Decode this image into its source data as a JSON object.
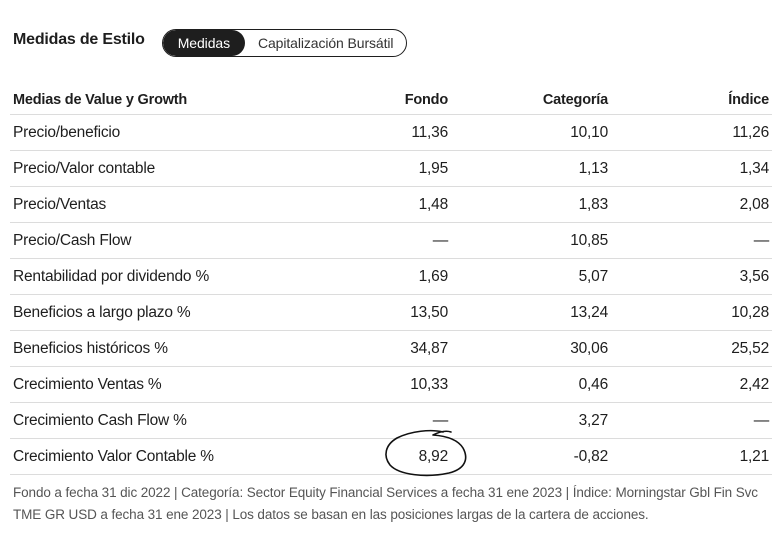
{
  "header": {
    "title": "Medidas de Estilo",
    "tabs": [
      {
        "label": "Medidas",
        "active": true
      },
      {
        "label": "Capitalización Bursátil",
        "active": false
      }
    ]
  },
  "table": {
    "columns": [
      "Medias de Value y Growth",
      "Fondo",
      "Categoría",
      "Índice"
    ],
    "rows": [
      {
        "label": "Precio/beneficio",
        "fondo": "11,36",
        "categoria": "10,10",
        "indice": "11,26"
      },
      {
        "label": "Precio/Valor contable",
        "fondo": "1,95",
        "categoria": "1,13",
        "indice": "1,34"
      },
      {
        "label": "Precio/Ventas",
        "fondo": "1,48",
        "categoria": "1,83",
        "indice": "2,08"
      },
      {
        "label": "Precio/Cash Flow",
        "fondo": "—",
        "categoria": "10,85",
        "indice": "—"
      },
      {
        "label": "Rentabilidad por dividendo %",
        "fondo": "1,69",
        "categoria": "5,07",
        "indice": "3,56"
      },
      {
        "label": "Beneficios a largo plazo %",
        "fondo": "13,50",
        "categoria": "13,24",
        "indice": "10,28"
      },
      {
        "label": "Beneficios históricos %",
        "fondo": "34,87",
        "categoria": "30,06",
        "indice": "25,52"
      },
      {
        "label": "Crecimiento Ventas %",
        "fondo": "10,33",
        "categoria": "0,46",
        "indice": "2,42"
      },
      {
        "label": "Crecimiento Cash Flow %",
        "fondo": "—",
        "categoria": "3,27",
        "indice": "—"
      },
      {
        "label": "Crecimiento Valor Contable %",
        "fondo": "8,92",
        "categoria": "-0,82",
        "indice": "1,21"
      }
    ]
  },
  "footnote": "Fondo a fecha 31 dic 2022 | Categoría: Sector Equity Financial Services a fecha 31 ene 2023 | Índice: Morningstar Gbl Fin Svc TME GR USD a fecha 31 ene 2023 | Los datos se basan en las posiciones largas de la cartera de acciones."
}
